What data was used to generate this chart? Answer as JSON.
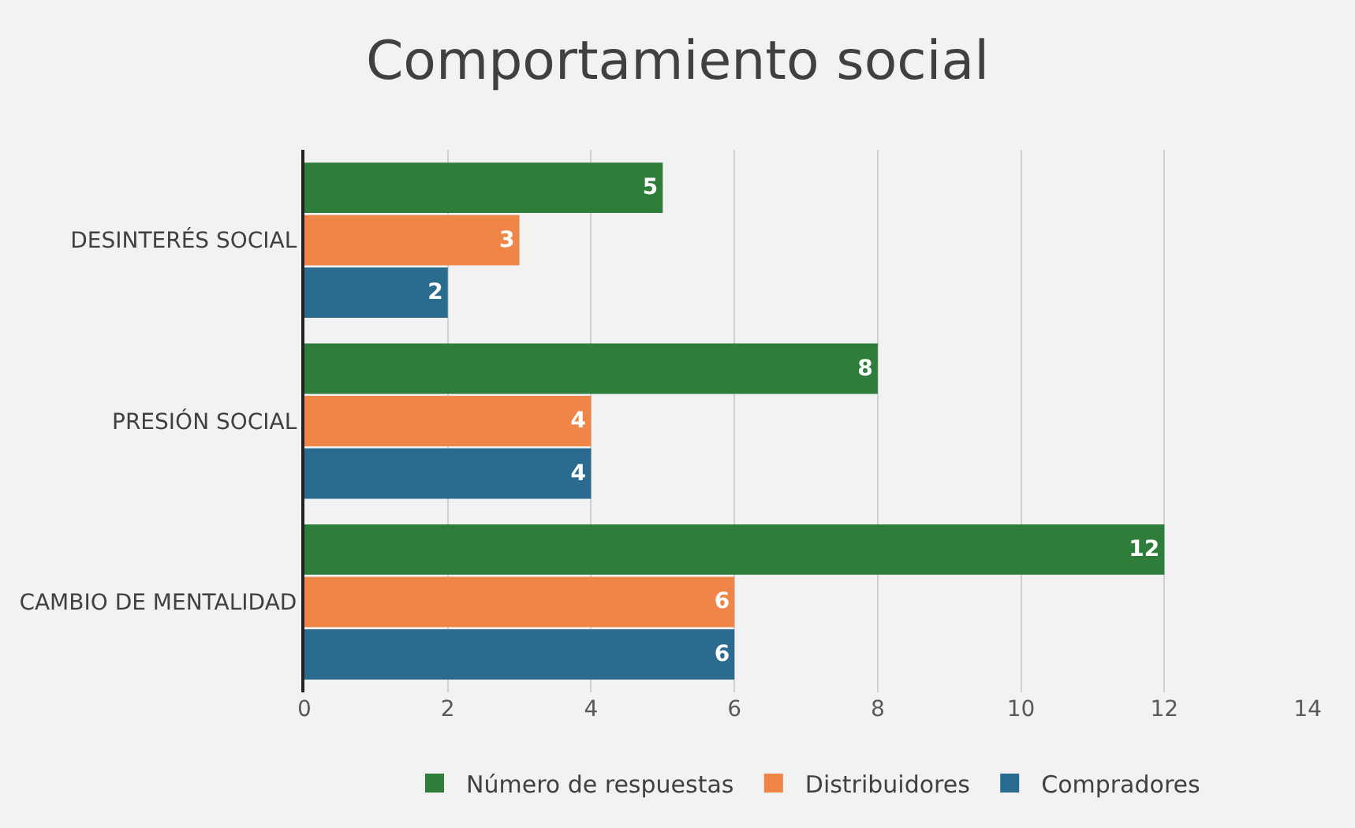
{
  "chart_data": {
    "type": "bar",
    "orientation": "horizontal",
    "title": "Comportamiento social",
    "categories": [
      "DESINTERÉS SOCIAL",
      "PRESIÓN SOCIAL",
      "CAMBIO DE MENTALIDAD"
    ],
    "series": [
      {
        "name": "Número de respuestas",
        "color": "#2e7d3a",
        "values": [
          5,
          8,
          12
        ]
      },
      {
        "name": "Distribuidores",
        "color": "#ef8547",
        "values": [
          3,
          4,
          6
        ]
      },
      {
        "name": "Compradores",
        "color": "#2a6b8f",
        "values": [
          2,
          4,
          6
        ]
      }
    ],
    "xlim": [
      0,
      14
    ],
    "xticks": [
      0,
      2,
      4,
      6,
      8,
      10,
      12,
      14
    ],
    "grid": "x",
    "legend": "bottom",
    "data_labels": true
  }
}
